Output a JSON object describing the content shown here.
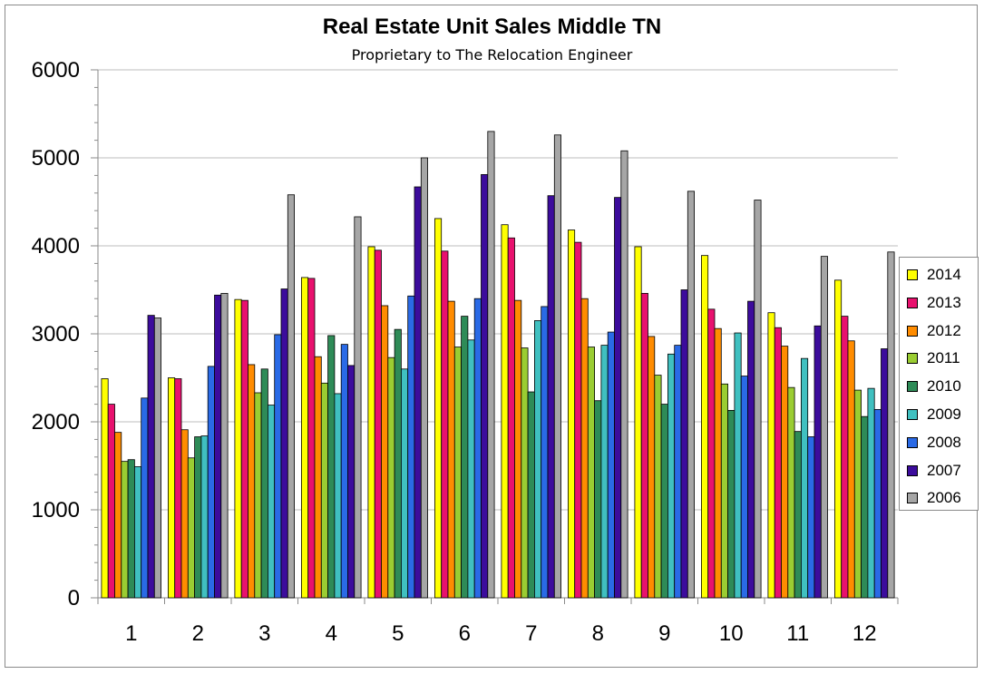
{
  "chart_data": {
    "type": "bar",
    "title": "Real Estate Unit Sales Middle TN",
    "subtitle": "Proprietary to The Relocation Engineer",
    "xlabel": "",
    "ylabel": "",
    "ylim": [
      0,
      6000
    ],
    "yticks": [
      "0",
      "1000",
      "2000",
      "3000",
      "4000",
      "5000",
      "6000"
    ],
    "categories": [
      "1",
      "2",
      "3",
      "4",
      "5",
      "6",
      "7",
      "8",
      "9",
      "10",
      "11",
      "12"
    ],
    "grid": true,
    "legend_position": "right",
    "series": [
      {
        "name": "2014",
        "color": "#ffff00",
        "values": [
          2490,
          2500,
          3390,
          3640,
          3990,
          4310,
          4240,
          4180,
          3990,
          3890,
          3240,
          3610
        ]
      },
      {
        "name": "2013",
        "color": "#e8116e",
        "values": [
          2200,
          2490,
          3380,
          3630,
          3950,
          3940,
          4090,
          4040,
          3460,
          3280,
          3070,
          3200
        ]
      },
      {
        "name": "2012",
        "color": "#ff8c00",
        "values": [
          1880,
          1910,
          2650,
          2740,
          3320,
          3370,
          3380,
          3400,
          2970,
          3060,
          2860,
          2920
        ]
      },
      {
        "name": "2011",
        "color": "#9acd32",
        "values": [
          1550,
          1590,
          2330,
          2440,
          2730,
          2850,
          2840,
          2850,
          2530,
          2430,
          2390,
          2360
        ]
      },
      {
        "name": "2010",
        "color": "#2e8b57",
        "values": [
          1570,
          1830,
          2600,
          2980,
          3050,
          3200,
          2340,
          2240,
          2200,
          2130,
          1890,
          2060
        ]
      },
      {
        "name": "2009",
        "color": "#40c0c0",
        "values": [
          1490,
          1840,
          2190,
          2320,
          2600,
          2930,
          3150,
          2870,
          2770,
          3010,
          2720,
          2380
        ]
      },
      {
        "name": "2008",
        "color": "#2a6ae6",
        "values": [
          2270,
          2630,
          2990,
          2880,
          3430,
          3400,
          3310,
          3020,
          2870,
          2520,
          1830,
          2140
        ]
      },
      {
        "name": "2007",
        "color": "#3c0c9c",
        "values": [
          3210,
          3440,
          3510,
          2640,
          4670,
          4810,
          4570,
          4550,
          3500,
          3370,
          3090,
          2830
        ]
      },
      {
        "name": "2006",
        "color": "#a6a6a6",
        "values": [
          3180,
          3460,
          4580,
          4330,
          5000,
          5300,
          5260,
          5080,
          4620,
          4520,
          3880,
          3930
        ]
      }
    ]
  }
}
